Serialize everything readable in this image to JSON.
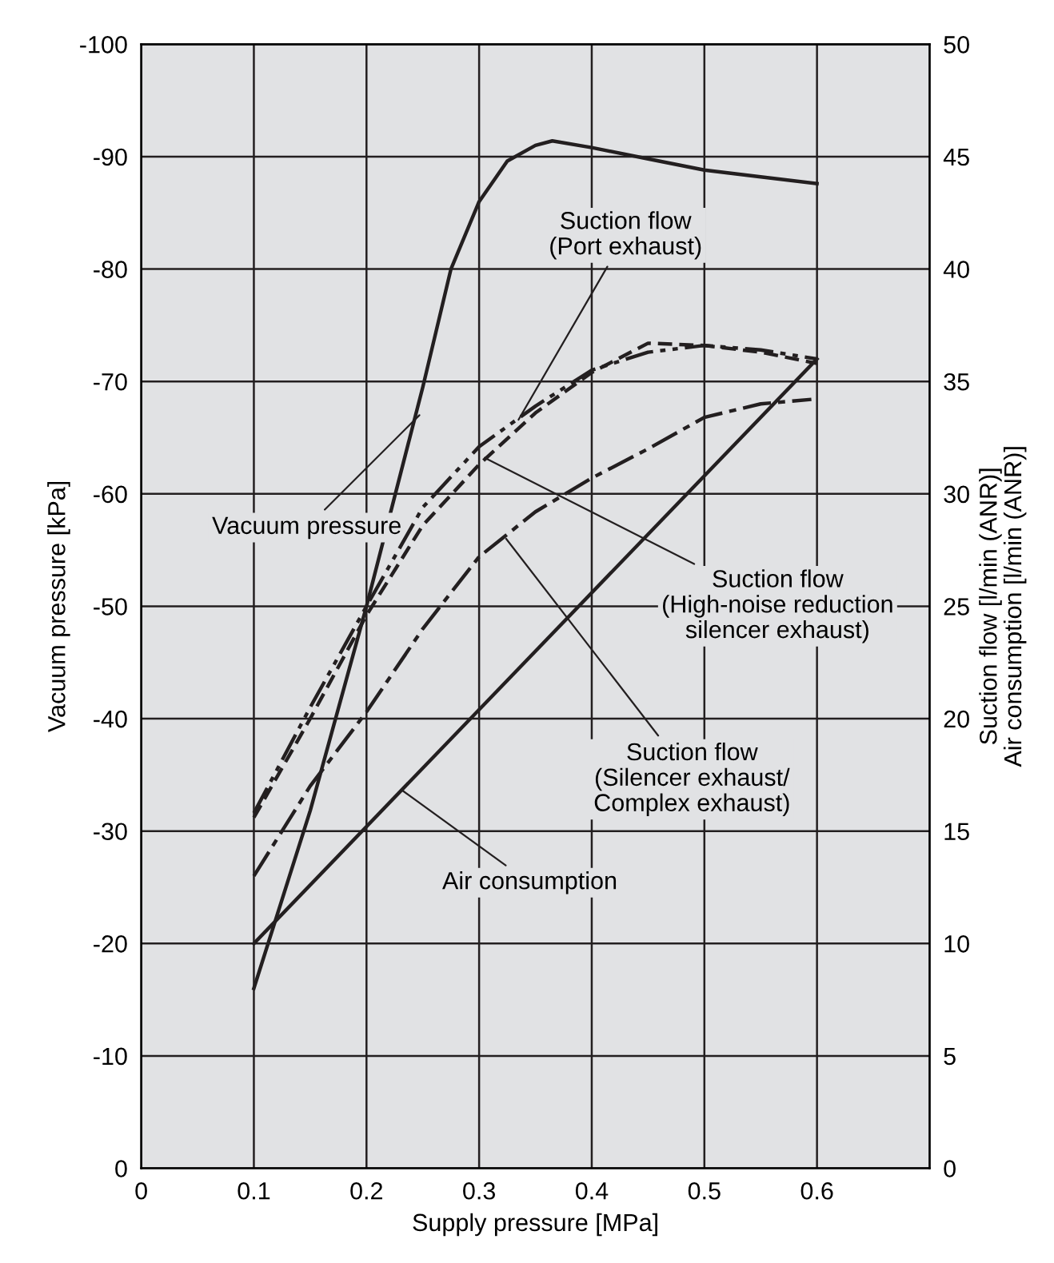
{
  "chart_data": {
    "type": "line",
    "xlabel": "Supply pressure [MPa]",
    "ylabel": "Vacuum pressure [kPa]",
    "y2label": "Suction flow [l/min (ANR)]\nAir consumption [l/min (ANR)]",
    "xlim": [
      0,
      0.7
    ],
    "xticks": [
      0,
      0.1,
      0.2,
      0.3,
      0.4,
      0.5,
      0.6
    ],
    "ylim": [
      0,
      -100
    ],
    "yticks": [
      -100,
      -90,
      -80,
      -70,
      -60,
      -50,
      -40,
      -30,
      -20,
      -10,
      0
    ],
    "y2lim": [
      0,
      50
    ],
    "y2ticks": [
      0,
      5,
      10,
      15,
      20,
      25,
      30,
      35,
      40,
      45,
      50
    ],
    "grid": true,
    "legend": false,
    "series": [
      {
        "axis": "y",
        "color": "#231f20",
        "line_style": "solid",
        "x": [
          0.1,
          0.15,
          0.2,
          0.25,
          0.275,
          0.3,
          0.325,
          0.35,
          0.365,
          0.4,
          0.45,
          0.5,
          0.55,
          0.6
        ],
        "values": [
          -16,
          -31.8,
          -50,
          -69.5,
          -80,
          -86,
          -89.6,
          -91,
          -91.4,
          -90.8,
          -89.8,
          -88.8,
          -88.2,
          -87.6
        ]
      },
      {
        "axis": "y2",
        "color": "#231f20",
        "line_style": "dashdotdot",
        "x": [
          0.1,
          0.15,
          0.2,
          0.25,
          0.3,
          0.35,
          0.4,
          0.45,
          0.5,
          0.55,
          0.6
        ],
        "values": [
          15.8,
          20.5,
          25,
          29.4,
          32.1,
          33.9,
          35.5,
          36.3,
          36.6,
          36.4,
          36.0
        ]
      },
      {
        "axis": "y2",
        "color": "#231f20",
        "line_style": "dashed",
        "x": [
          0.1,
          0.15,
          0.2,
          0.25,
          0.3,
          0.35,
          0.4,
          0.45,
          0.5,
          0.55,
          0.6
        ],
        "values": [
          15.6,
          20,
          24.6,
          28.6,
          31.3,
          33.6,
          35.4,
          36.7,
          36.6,
          36.3,
          35.8
        ]
      },
      {
        "axis": "y2",
        "color": "#231f20",
        "line_style": "dashdot",
        "x": [
          0.1,
          0.15,
          0.2,
          0.25,
          0.3,
          0.35,
          0.4,
          0.45,
          0.5,
          0.55,
          0.595
        ],
        "values": [
          13,
          17,
          20.3,
          24,
          27.2,
          29.2,
          30.7,
          32,
          33.4,
          34,
          34.2
        ]
      },
      {
        "axis": "y2",
        "color": "#231f20",
        "line_style": "solid",
        "x": [
          0.1,
          0.6
        ],
        "values": [
          10,
          36
        ]
      }
    ],
    "annotations": [
      {
        "text": "Vacuum pressure",
        "x": 0.247,
        "y": -67
      },
      {
        "text": "Suction flow\n(Port exhaust)",
        "x": 0.335,
        "y": -66.6
      },
      {
        "text": "Suction flow\n(High-noise reduction\nsilencer exhaust)",
        "x": 0.305,
        "y": -63.2
      },
      {
        "text": "Suction flow\n(Silencer exhaust/\nComplex exhaust)",
        "x": 0.324,
        "y": -56
      },
      {
        "text": "Air consumption",
        "x": 0.232,
        "y": -33.6
      }
    ]
  }
}
